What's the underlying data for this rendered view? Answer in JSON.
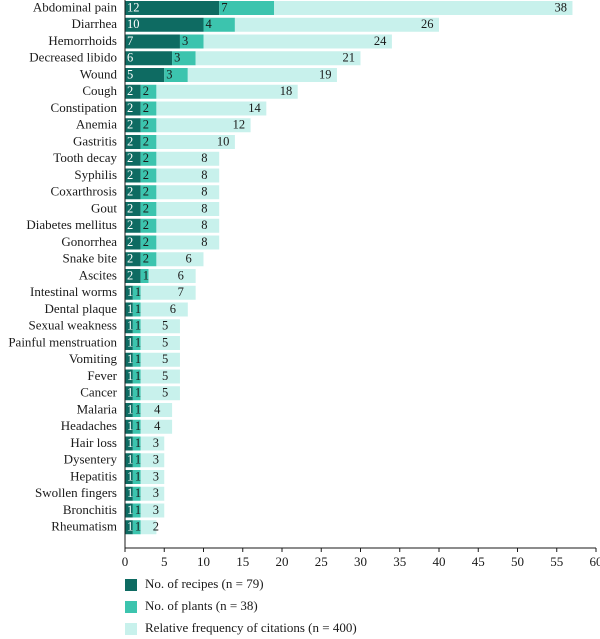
{
  "chart_data": {
    "type": "bar",
    "orientation": "horizontal",
    "stacked": true,
    "categories": [
      "Abdominal pain",
      "Diarrhea",
      "Hemorrhoids",
      "Decreased libido",
      "Wound",
      "Cough",
      "Constipation",
      "Anemia",
      "Gastritis",
      "Tooth decay",
      "Syphilis",
      "Coxarthrosis",
      "Gout",
      "Diabetes mellitus",
      "Gonorrhea",
      "Snake bite",
      "Ascites",
      "Intestinal worms",
      "Dental plaque",
      "Sexual weakness",
      "Painful menstruation",
      "Vomiting",
      "Fever",
      "Cancer",
      "Malaria",
      "Headaches",
      "Hair loss",
      "Dysentery",
      "Hepatitis",
      "Swollen fingers",
      "Bronchitis",
      "Rheumatism"
    ],
    "series": [
      {
        "name": "No. of recipes (n = 79)",
        "color": "#0e6b62",
        "values": [
          12,
          10,
          7,
          6,
          5,
          2,
          2,
          2,
          2,
          2,
          2,
          2,
          2,
          2,
          2,
          2,
          2,
          1,
          1,
          1,
          1,
          1,
          1,
          1,
          1,
          1,
          1,
          1,
          1,
          1,
          1,
          1
        ]
      },
      {
        "name": "No. of plants (n = 38)",
        "color": "#3cc4ae",
        "values": [
          7,
          4,
          3,
          3,
          3,
          2,
          2,
          2,
          2,
          2,
          2,
          2,
          2,
          2,
          2,
          2,
          1,
          1,
          1,
          1,
          1,
          1,
          1,
          1,
          1,
          1,
          1,
          1,
          1,
          1,
          1,
          1
        ]
      },
      {
        "name": "Relative frequency of citations (n = 400)",
        "color": "#c8f1ec",
        "values": [
          38,
          26,
          24,
          21,
          19,
          18,
          14,
          12,
          10,
          8,
          8,
          8,
          8,
          8,
          8,
          6,
          6,
          7,
          6,
          5,
          5,
          5,
          5,
          5,
          4,
          4,
          3,
          3,
          3,
          3,
          3,
          2
        ]
      }
    ],
    "value_labels": [
      [
        "12",
        "7",
        "38"
      ],
      [
        "10",
        "4",
        "26"
      ],
      [
        "7",
        "3",
        "24"
      ],
      [
        "6",
        "3",
        "21"
      ],
      [
        "5",
        "3",
        "19"
      ],
      [
        "2",
        "2",
        "18"
      ],
      [
        "2",
        "2",
        "14"
      ],
      [
        "2",
        "2",
        "12"
      ],
      [
        "2",
        "2",
        "10"
      ],
      [
        "2",
        "2",
        "8"
      ],
      [
        "2",
        "2",
        "8"
      ],
      [
        "2",
        "2",
        "8"
      ],
      [
        "2",
        "2",
        "8"
      ],
      [
        "2",
        "2",
        "8"
      ],
      [
        "2",
        "2",
        "8"
      ],
      [
        "2",
        "2",
        "6"
      ],
      [
        "2",
        "1",
        "6"
      ],
      [
        "1",
        "1",
        "7"
      ],
      [
        "1",
        "1",
        "6"
      ],
      [
        "1",
        "1",
        "5"
      ],
      [
        "1",
        "1",
        "5"
      ],
      [
        "1",
        "1",
        "5"
      ],
      [
        "1",
        "1",
        "5"
      ],
      [
        "1",
        "1",
        "5"
      ],
      [
        "1",
        "1",
        "4"
      ],
      [
        "1",
        "1",
        "4"
      ],
      [
        "1",
        "1",
        "3"
      ],
      [
        "1",
        "1",
        "3"
      ],
      [
        "1",
        "1",
        "3"
      ],
      [
        "1",
        "1",
        "3"
      ],
      [
        "1",
        "1",
        "3"
      ],
      [
        "1",
        "1",
        "2"
      ]
    ],
    "xlim": [
      0,
      60
    ],
    "xticks": [
      0,
      5,
      10,
      15,
      20,
      25,
      30,
      35,
      40,
      45,
      50,
      55,
      60
    ],
    "title": "",
    "xlabel": "",
    "ylabel": "",
    "grid": false,
    "legend_position": "bottom-left"
  }
}
